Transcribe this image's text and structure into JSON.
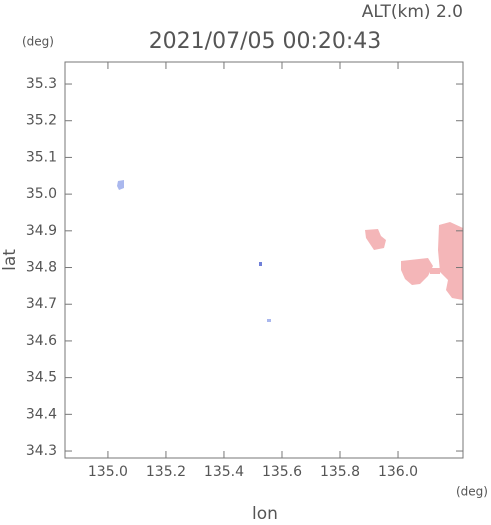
{
  "chart_data": {
    "type": "map",
    "title": "2021/07/05 00:20:43",
    "subtitle": "ALT(km) 2.0",
    "x_label": "lon",
    "y_label": "lat",
    "x_unit": "(deg)",
    "y_unit": "(deg)",
    "xlim": [
      134.852,
      136.224
    ],
    "ylim": [
      34.281,
      35.36
    ],
    "xticks": [
      {
        "value": 135,
        "label": "135.0"
      },
      135.2,
      135.4,
      135.6,
      135.8,
      {
        "value": 136,
        "label": "136.0"
      }
    ],
    "yticks": [
      34.3,
      34.4,
      34.5,
      34.6,
      34.7,
      34.8,
      34.9,
      {
        "value": 35,
        "label": "35.0"
      },
      35.1,
      35.2,
      35.3
    ]
  }
}
